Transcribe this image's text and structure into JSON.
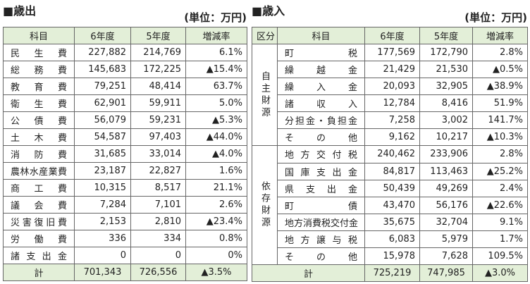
{
  "left": {
    "title": "■歳出",
    "unit": "(単位：万円)",
    "header": [
      "科目",
      "6年度",
      "5年度",
      "増減率"
    ],
    "rows": [
      [
        "民生費",
        "227,882",
        "214,769",
        "6.1%"
      ],
      [
        "総務費",
        "145,683",
        "172,225",
        "▲15.4%"
      ],
      [
        "教育費",
        "79,251",
        "48,414",
        "63.7%"
      ],
      [
        "衛生費",
        "62,901",
        "59,911",
        "5.0%"
      ],
      [
        "公債費",
        "56,079",
        "59,231",
        "▲5.3%"
      ],
      [
        "土木費",
        "54,587",
        "97,403",
        "▲44.0%"
      ],
      [
        "消防費",
        "31,685",
        "33,014",
        "▲4.0%"
      ],
      [
        "農林水産業費",
        "23,187",
        "22,827",
        "1.6%"
      ],
      [
        "商工費",
        "10,315",
        "8,517",
        "21.1%"
      ],
      [
        "議会費",
        "7,284",
        "7,101",
        "2.6%"
      ],
      [
        "災害復旧費",
        "2,153",
        "2,810",
        "▲23.4%"
      ],
      [
        "労働費",
        "336",
        "334",
        "0.8%"
      ],
      [
        "諸支出金",
        "0",
        "0",
        "0%"
      ]
    ],
    "total": [
      "計",
      "701,343",
      "726,556",
      "▲3.5%"
    ]
  },
  "right": {
    "title": "■歳入",
    "unit": "(単位：万円)",
    "header": [
      "区分",
      "科目",
      "6年度",
      "5年度",
      "増減率"
    ],
    "groups": [
      {
        "label": "自主財源",
        "rows": [
          [
            "町税",
            "177,569",
            "172,790",
            "2.8%"
          ],
          [
            "繰越金",
            "21,429",
            "21,530",
            "▲0.5%"
          ],
          [
            "繰入金",
            "20,093",
            "32,905",
            "▲38.9%"
          ],
          [
            "諸収入",
            "12,784",
            "8,416",
            "51.9%"
          ],
          [
            "分担金・負担金",
            "7,258",
            "3,002",
            "141.7%"
          ],
          [
            "その他",
            "9,162",
            "10,217",
            "▲10.3%"
          ]
        ]
      },
      {
        "label": "依存財源",
        "rows": [
          [
            "地方交付税",
            "240,462",
            "233,906",
            "2.8%"
          ],
          [
            "国庫支出金",
            "84,817",
            "113,463",
            "▲25.2%"
          ],
          [
            "県支出金",
            "50,439",
            "49,269",
            "2.4%"
          ],
          [
            "町債",
            "43,470",
            "56,176",
            "▲22.6%"
          ],
          [
            "地方消費税交付金",
            "35,675",
            "32,704",
            "9.1%"
          ],
          [
            "地方譲与税",
            "6,083",
            "5,979",
            "1.7%"
          ],
          [
            "その他",
            "15,978",
            "7,628",
            "109.5%"
          ]
        ]
      }
    ],
    "total": [
      "計",
      "725,219",
      "747,985",
      "▲3.0%"
    ]
  }
}
